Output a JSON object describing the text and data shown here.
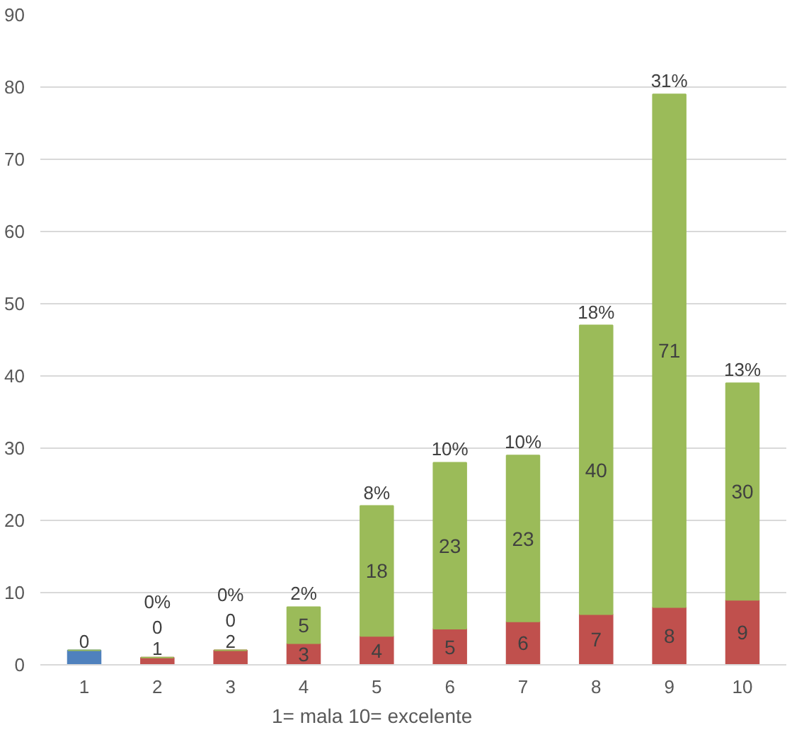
{
  "chart_data": {
    "type": "bar",
    "stacked": true,
    "categories": [
      "1",
      "2",
      "3",
      "4",
      "5",
      "6",
      "7",
      "8",
      "9",
      "10"
    ],
    "series": [
      {
        "color": "#4f81bd",
        "values": [
          2,
          null,
          null,
          null,
          null,
          null,
          null,
          null,
          null,
          null
        ],
        "value_labels": [
          null,
          null,
          null,
          null,
          null,
          null,
          null,
          null,
          null,
          null
        ]
      },
      {
        "color": "#c0504d",
        "values": [
          null,
          1,
          2,
          3,
          4,
          5,
          6,
          7,
          8,
          9
        ],
        "value_labels": [
          null,
          "1",
          "2",
          "3",
          "4",
          "5",
          "6",
          "7",
          "8",
          "9"
        ]
      },
      {
        "color": "#9bbb59",
        "values": [
          0,
          0,
          0,
          5,
          18,
          23,
          23,
          40,
          71,
          30
        ],
        "value_labels": [
          "0",
          "0",
          "0",
          "5",
          "18",
          "23",
          "23",
          "40",
          "71",
          "30"
        ]
      }
    ],
    "annotations": [
      {
        "text": "0%",
        "x": "2",
        "y": 1
      },
      {
        "text": "0%",
        "x": "3",
        "y": 2
      },
      {
        "text": "2%",
        "x": "4",
        "y": 8
      },
      {
        "text": "8%",
        "x": "5",
        "y": 22
      },
      {
        "text": "10%",
        "x": "6",
        "y": 28
      },
      {
        "text": "10%",
        "x": "7",
        "y": 29
      },
      {
        "text": "18%",
        "x": "8",
        "y": 47
      },
      {
        "text": "31%",
        "x": "9",
        "y": 79
      },
      {
        "text": "13%",
        "x": "10",
        "y": 39
      }
    ],
    "xlabel": "1= mala                10= excelente",
    "ylim": [
      0,
      90
    ],
    "yticks": [
      0,
      10,
      20,
      30,
      40,
      50,
      60,
      70,
      80,
      90
    ],
    "grid": "y"
  }
}
